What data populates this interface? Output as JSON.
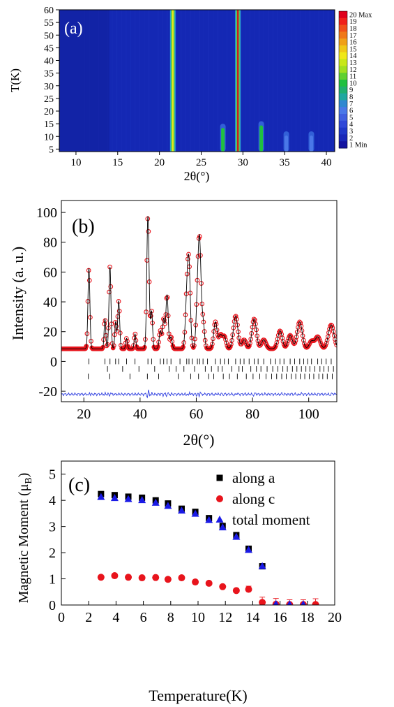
{
  "chart_data": [
    {
      "panel": "(a)",
      "type": "heatmap",
      "xlabel": "2θ(°)",
      "ylabel": "T(K)",
      "xlim": [
        8,
        41
      ],
      "ylim": [
        4,
        60
      ],
      "x_ticks": [
        10,
        15,
        20,
        25,
        30,
        35,
        40
      ],
      "y_ticks": [
        5,
        10,
        15,
        20,
        25,
        30,
        35,
        40,
        45,
        50,
        55,
        60
      ],
      "colorbar": {
        "labels": [
          "20 Max",
          "19",
          "18",
          "17",
          "16",
          "15",
          "14",
          "13",
          "12",
          "11",
          "10",
          "9",
          "8",
          "7",
          "6",
          "5",
          "4",
          "3",
          "2",
          "1 Min"
        ],
        "colors": [
          "#e0001b",
          "#f0201a",
          "#f0501a",
          "#f07818",
          "#f0a018",
          "#f0c818",
          "#f0e818",
          "#c8e818",
          "#a0e020",
          "#60d030",
          "#20c040",
          "#20b070",
          "#20a8a0",
          "#3088d0",
          "#4a78e8",
          "#4060e0",
          "#3048d8",
          "#2038c8",
          "#1a28b8",
          "#1414a0"
        ]
      },
      "background_color": "#1428b4",
      "lines_all_T": [
        {
          "x": 21.6,
          "peak_color": "#f0e818"
        },
        {
          "x": 29.4,
          "peak_color": "#e0001b"
        }
      ],
      "low_T_peaks": [
        {
          "x": 27.6,
          "t_max": 15,
          "color": "#20c040"
        },
        {
          "x": 32.2,
          "t_max": 16,
          "color": "#20c040"
        },
        {
          "x": 35.2,
          "t_max": 12,
          "color": "#4a78e8"
        },
        {
          "x": 38.2,
          "t_max": 12,
          "color": "#4a78e8"
        }
      ]
    },
    {
      "panel": "(b)",
      "type": "line",
      "xlabel": "2θ(°)",
      "ylabel": "Intensity (a. u.)",
      "xlim": [
        12,
        110
      ],
      "ylim": [
        -27,
        108
      ],
      "x_ticks": [
        20,
        40,
        60,
        80,
        100
      ],
      "y_ticks": [
        -20,
        0,
        20,
        40,
        60,
        80,
        100
      ],
      "baseline": 8.5,
      "peaks": [
        {
          "x": 21.8,
          "h": 54,
          "w": 0.35
        },
        {
          "x": 27.5,
          "h": 20,
          "w": 0.3
        },
        {
          "x": 29.3,
          "h": 55,
          "w": 0.35
        },
        {
          "x": 31.3,
          "h": 18,
          "w": 0.3
        },
        {
          "x": 32.4,
          "h": 32,
          "w": 0.35
        },
        {
          "x": 35.2,
          "h": 7,
          "w": 0.3
        },
        {
          "x": 38.2,
          "h": 10,
          "w": 0.3
        },
        {
          "x": 42.8,
          "h": 89,
          "w": 0.4
        },
        {
          "x": 44.1,
          "h": 25,
          "w": 0.35
        },
        {
          "x": 47.2,
          "h": 12,
          "w": 0.4
        },
        {
          "x": 48.4,
          "h": 20,
          "w": 0.4
        },
        {
          "x": 49.6,
          "h": 36,
          "w": 0.4
        },
        {
          "x": 51.0,
          "h": 8,
          "w": 0.4
        },
        {
          "x": 56.6,
          "h": 30,
          "w": 0.5
        },
        {
          "x": 57.4,
          "h": 53,
          "w": 0.5
        },
        {
          "x": 60.4,
          "h": 30,
          "w": 0.5
        },
        {
          "x": 61.2,
          "h": 66,
          "w": 0.5
        },
        {
          "x": 62.4,
          "h": 18,
          "w": 0.5
        },
        {
          "x": 66.8,
          "h": 18,
          "w": 0.6
        },
        {
          "x": 68.6,
          "h": 9,
          "w": 0.6
        },
        {
          "x": 70.0,
          "h": 8,
          "w": 0.6
        },
        {
          "x": 74.0,
          "h": 22,
          "w": 0.8
        },
        {
          "x": 77.0,
          "h": 6,
          "w": 0.7
        },
        {
          "x": 80.6,
          "h": 20,
          "w": 0.8
        },
        {
          "x": 84.0,
          "h": 6,
          "w": 0.8
        },
        {
          "x": 89.8,
          "h": 12,
          "w": 0.8
        },
        {
          "x": 93.4,
          "h": 9,
          "w": 0.8
        },
        {
          "x": 96.8,
          "h": 18,
          "w": 0.9
        },
        {
          "x": 101.0,
          "h": 5,
          "w": 0.8
        },
        {
          "x": 103.2,
          "h": 8,
          "w": 0.9
        },
        {
          "x": 108.0,
          "h": 16,
          "w": 1.0
        }
      ],
      "tick_rows": [
        {
          "y": 0,
          "positions": [
            21.8,
            27.5,
            29.3,
            31.3,
            32.4,
            35.2,
            38.2,
            42.8,
            44.1,
            47.2,
            48.4,
            49.6,
            51.0,
            54.2,
            56.6,
            57.4,
            58.6,
            60.4,
            61.2,
            62.4,
            64.0,
            66.8,
            68.6,
            70.0,
            71.4,
            74.0,
            75.6,
            77.0,
            78.8,
            80.6,
            82.0,
            84.0,
            86.4,
            88.2,
            89.8,
            91.2,
            93.4,
            95.0,
            96.8,
            98.2,
            99.6,
            101.0,
            103.2,
            104.6,
            106.2,
            108.0
          ]
        },
        {
          "y": -5,
          "positions": [
            28.4,
            33.8,
            39.6,
            45.2,
            50.4,
            52.8,
            55.6,
            59.4,
            63.2,
            65.4,
            67.8,
            69.2,
            72.6,
            75.2,
            76.4,
            79.4,
            81.4,
            83.0,
            85.2,
            87.2,
            89.0,
            90.8,
            92.4,
            94.2,
            95.8,
            97.4,
            99.0,
            100.4,
            102.2,
            104.0,
            105.4,
            107.0,
            108.8
          ]
        },
        {
          "y": -10,
          "positions": [
            21.6,
            29.2,
            36.4,
            42.6,
            46.6,
            53.6,
            58.0,
            60.8,
            64.4,
            66.2,
            69.6,
            71.8,
            74.6,
            77.8,
            80.2,
            82.6,
            84.8,
            86.8,
            88.6,
            90.4,
            92.0,
            93.8,
            95.4,
            97.0,
            98.6,
            100.2,
            101.8,
            103.6,
            105.0,
            106.6,
            108.4
          ]
        }
      ],
      "difference_offset": -22
    },
    {
      "panel": "(c)",
      "type": "scatter",
      "xlabel": "Temperature(K)",
      "ylabel": "Magnetic Moment (μB)",
      "xlim": [
        0,
        20
      ],
      "ylim": [
        0,
        5.5
      ],
      "x_ticks": [
        0,
        2,
        4,
        6,
        8,
        10,
        12,
        14,
        16,
        18,
        20
      ],
      "y_ticks": [
        0,
        1,
        2,
        3,
        4,
        5
      ],
      "legend_position": "top-right",
      "series": [
        {
          "name": "along a",
          "marker": "square",
          "color": "#000000",
          "x": [
            2.9,
            3.9,
            4.9,
            5.9,
            6.9,
            7.8,
            8.8,
            9.8,
            10.8,
            11.8,
            12.8,
            13.7,
            14.7
          ],
          "y": [
            4.24,
            4.2,
            4.14,
            4.1,
            4.0,
            3.88,
            3.68,
            3.56,
            3.32,
            3.02,
            2.67,
            2.15,
            1.48
          ]
        },
        {
          "name": "along c",
          "marker": "circle",
          "color": "#e8141c",
          "x": [
            2.9,
            3.9,
            4.9,
            5.9,
            6.9,
            7.8,
            8.8,
            9.8,
            10.8,
            11.8,
            12.8,
            13.7,
            14.7,
            15.7,
            16.7,
            17.7,
            18.6
          ],
          "y": [
            1.06,
            1.12,
            1.06,
            1.04,
            1.05,
            0.98,
            1.04,
            0.88,
            0.83,
            0.7,
            0.55,
            0.6,
            0.1,
            0.03,
            0.02,
            0.02,
            0.02
          ],
          "err": [
            0,
            0,
            0,
            0,
            0,
            0,
            0,
            0,
            0,
            0,
            0.08,
            0.12,
            0.2,
            0.22,
            0.18,
            0.18,
            0.22
          ]
        },
        {
          "name": "total moment",
          "marker": "triangle",
          "color": "#1a1ae6",
          "x": [
            2.9,
            3.9,
            4.9,
            5.9,
            6.9,
            7.8,
            8.8,
            9.8,
            10.8,
            11.8,
            12.8,
            13.7,
            14.7,
            15.7,
            16.7,
            17.7
          ],
          "y": [
            4.12,
            4.08,
            4.04,
            4.0,
            3.9,
            3.78,
            3.6,
            3.48,
            3.24,
            2.96,
            2.6,
            2.1,
            1.48,
            0.03,
            0.02,
            0.02
          ]
        }
      ]
    }
  ]
}
